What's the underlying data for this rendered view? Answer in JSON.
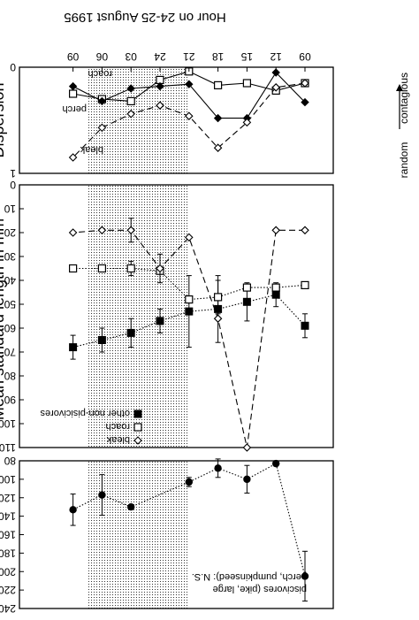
{
  "figure": {
    "top_axis_title": "Hour on 24-25 August 1995",
    "orientation_note": "printed upside-down (rotated 180°)",
    "shaded_hours": [
      "21",
      "06"
    ]
  },
  "chart_data": [
    {
      "type": "line",
      "panel": "dispersion",
      "ylabel": "Dispersion",
      "side_label_top": "random",
      "side_label_bottom": "contagious",
      "ylim": [
        0,
        1
      ],
      "yticks": [
        0,
        1
      ],
      "x": [
        "09",
        "12",
        "15",
        "18",
        "21",
        "24",
        "03",
        "06",
        "09"
      ],
      "series": [
        {
          "name": "roach",
          "marker": "square-open",
          "line": "solid",
          "values": [
            0.15,
            0.22,
            0.15,
            0.17,
            0.04,
            0.12,
            0.32,
            0.3,
            0.25
          ]
        },
        {
          "name": "perch",
          "marker": "diamond-filled",
          "line": "solid",
          "values": [
            0.33,
            0.05,
            0.48,
            0.48,
            0.16,
            0.18,
            0.2,
            0.32,
            0.18
          ]
        },
        {
          "name": "bleak",
          "marker": "diamond-open",
          "line": "dashed",
          "values": [
            0.15,
            0.19,
            0.52,
            0.76,
            0.46,
            0.36,
            0.44,
            0.57,
            0.85
          ]
        }
      ]
    },
    {
      "type": "line",
      "panel": "standard length",
      "ylabel": "Mean standard length in mm",
      "ylim": [
        0,
        110
      ],
      "yticks": [
        0,
        10,
        20,
        30,
        40,
        50,
        60,
        70,
        80,
        90,
        100,
        110
      ],
      "x": [
        "09",
        "12",
        "15",
        "18",
        "21",
        "24",
        "03",
        "06",
        "09"
      ],
      "series": [
        {
          "name": "other non-pisicivores",
          "marker": "square-filled",
          "line": "dotted",
          "values": [
            59,
            46,
            49,
            52,
            53,
            57,
            62,
            65,
            68
          ],
          "error": [
            5,
            5,
            8,
            14,
            15,
            5,
            6,
            5,
            5
          ]
        },
        {
          "name": "roach",
          "marker": "square-open",
          "line": "dotted",
          "values": [
            42,
            43,
            43,
            47,
            48,
            36,
            35,
            35,
            35
          ],
          "error": [
            0,
            0,
            0,
            7,
            0,
            0,
            3,
            0,
            0
          ]
        },
        {
          "name": "bleak",
          "marker": "diamond-open",
          "line": "dashed",
          "values": [
            19,
            19,
            110,
            56,
            22,
            35,
            19,
            19,
            20
          ],
          "error": [
            0,
            0,
            0,
            0,
            0,
            6,
            5,
            0,
            0
          ]
        }
      ]
    },
    {
      "type": "line",
      "panel": "piscivores",
      "ylim": [
        80,
        240
      ],
      "yticks": [
        80,
        100,
        120,
        140,
        160,
        180,
        200,
        220,
        240
      ],
      "x": [
        "09",
        "12",
        "15",
        "18",
        "21",
        "24",
        "03",
        "06",
        "09"
      ],
      "annotation": "piscivores (pike, large perch, pumpkinseed): N.S.",
      "series": [
        {
          "name": "piscivores",
          "marker": "circle-filled",
          "line": "dotted",
          "values": [
            205,
            83,
            100,
            88,
            103,
            null,
            130,
            117,
            133
          ],
          "error": [
            27,
            0,
            15,
            10,
            5,
            null,
            0,
            22,
            17
          ]
        }
      ]
    }
  ]
}
